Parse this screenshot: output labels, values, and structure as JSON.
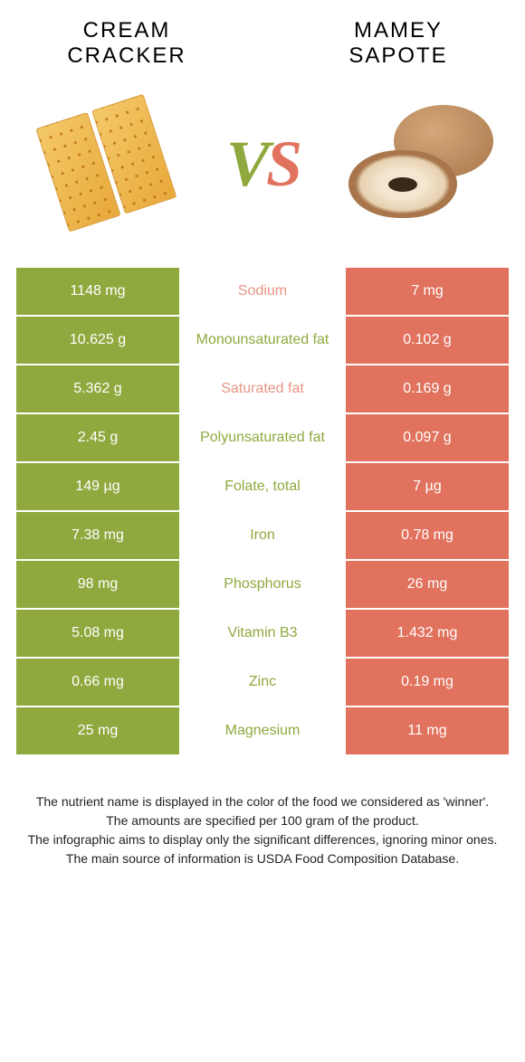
{
  "header": {
    "left_title_line1": "CREAM",
    "left_title_line2": "CRACKER",
    "right_title_line1": "MAMEY",
    "right_title_line2": "SAPOTE"
  },
  "vs": {
    "v": "V",
    "s": "S"
  },
  "colors": {
    "left": "#8fa93e",
    "right": "#e1725d",
    "left_dim": "#a9bc6e",
    "right_dim": "#e89583"
  },
  "rows": [
    {
      "label": "Sodium",
      "left": "1148 mg",
      "right": "7 mg",
      "label_color": "#e89583",
      "left_bg": "#8fa93e",
      "right_bg": "#e1725d"
    },
    {
      "label": "Monounsaturated fat",
      "left": "10.625 g",
      "right": "0.102 g",
      "label_color": "#8fa93e",
      "left_bg": "#8fa93e",
      "right_bg": "#e1725d"
    },
    {
      "label": "Saturated fat",
      "left": "5.362 g",
      "right": "0.169 g",
      "label_color": "#e89583",
      "left_bg": "#8fa93e",
      "right_bg": "#e1725d"
    },
    {
      "label": "Polyunsaturated fat",
      "left": "2.45 g",
      "right": "0.097 g",
      "label_color": "#8fa93e",
      "left_bg": "#8fa93e",
      "right_bg": "#e1725d"
    },
    {
      "label": "Folate, total",
      "left": "149 µg",
      "right": "7 µg",
      "label_color": "#8fa93e",
      "left_bg": "#8fa93e",
      "right_bg": "#e1725d"
    },
    {
      "label": "Iron",
      "left": "7.38 mg",
      "right": "0.78 mg",
      "label_color": "#8fa93e",
      "left_bg": "#8fa93e",
      "right_bg": "#e1725d"
    },
    {
      "label": "Phosphorus",
      "left": "98 mg",
      "right": "26 mg",
      "label_color": "#8fa93e",
      "left_bg": "#8fa93e",
      "right_bg": "#e1725d"
    },
    {
      "label": "Vitamin B3",
      "left": "5.08 mg",
      "right": "1.432 mg",
      "label_color": "#8fa93e",
      "left_bg": "#8fa93e",
      "right_bg": "#e1725d"
    },
    {
      "label": "Zinc",
      "left": "0.66 mg",
      "right": "0.19 mg",
      "label_color": "#8fa93e",
      "left_bg": "#8fa93e",
      "right_bg": "#e1725d"
    },
    {
      "label": "Magnesium",
      "left": "25 mg",
      "right": "11 mg",
      "label_color": "#8fa93e",
      "left_bg": "#8fa93e",
      "right_bg": "#e1725d"
    }
  ],
  "footer": {
    "line1": "The nutrient name is displayed in the color of the food we considered as 'winner'.",
    "line2": "The amounts are specified per 100 gram of the product.",
    "line3": "The infographic aims to display only the significant differences, ignoring minor ones.",
    "line4": "The main source of information is USDA Food Composition Database."
  }
}
